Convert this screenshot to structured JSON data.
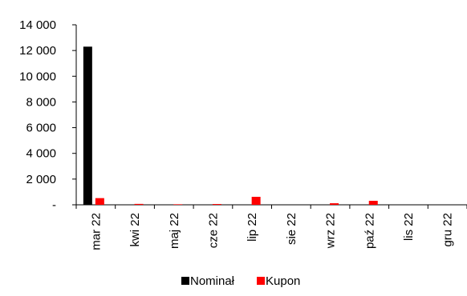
{
  "chart_data": {
    "type": "bar",
    "title": "",
    "xlabel": "",
    "ylabel": "",
    "categories": [
      "mar 22",
      "kwi 22",
      "maj 22",
      "cze 22",
      "lip 22",
      "sie 22",
      "wrz 22",
      "paź 22",
      "lis 22",
      "gru 22"
    ],
    "series": [
      {
        "name": "Nominał",
        "color": "#000000",
        "values": [
          12300,
          0,
          0,
          0,
          0,
          0,
          0,
          0,
          0,
          0
        ]
      },
      {
        "name": "Kupon",
        "color": "#ff0000",
        "values": [
          520,
          70,
          40,
          60,
          620,
          0,
          120,
          310,
          0,
          0
        ]
      }
    ],
    "ylim": [
      0,
      14000
    ],
    "yticks": [
      0,
      2000,
      4000,
      6000,
      8000,
      10000,
      12000,
      14000
    ],
    "ytick_labels": [
      "-",
      "2 000",
      "4 000",
      "6 000",
      "8 000",
      "10 000",
      "12 000",
      "14 000"
    ],
    "grid": false,
    "legend_position": "bottom"
  }
}
